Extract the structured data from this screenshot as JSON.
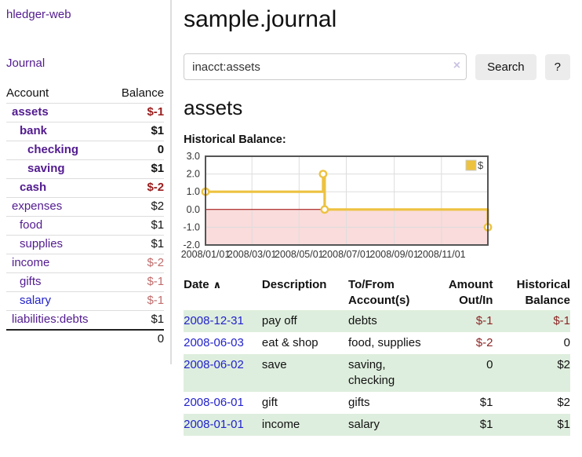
{
  "colors": {
    "accent_purple": "#521b8f",
    "link_blue": "#2222cc",
    "negative_strong": "#9b1c1c",
    "negative_table": "#8b2525",
    "negative_light": "#c06c6c",
    "row_green": "#deeede",
    "chart_line": "#EDC240",
    "chart_negative_fill": "#fadcdc",
    "chart_zero_line": "#a40000",
    "chart_grid": "#dddddd",
    "chart_border": "#555555"
  },
  "sidebar": {
    "app_title": "hledger-web",
    "nav": {
      "journal_label": "Journal"
    },
    "accounts_table": {
      "headers": {
        "account": "Account",
        "balance": "Balance"
      },
      "rows": [
        {
          "name": "assets",
          "depth": 1,
          "bold": true,
          "color": "purple",
          "balance": "$-1",
          "balance_style": "negbold"
        },
        {
          "name": "bank",
          "depth": 2,
          "bold": true,
          "color": "purple",
          "balance": "$1",
          "balance_style": "bold"
        },
        {
          "name": "checking",
          "depth": 3,
          "bold": true,
          "color": "purple",
          "balance": "0",
          "balance_style": "bold"
        },
        {
          "name": "saving",
          "depth": 3,
          "bold": true,
          "color": "purple",
          "balance": "$1",
          "balance_style": "bold"
        },
        {
          "name": "cash",
          "depth": 2,
          "bold": true,
          "color": "purple",
          "balance": "$-2",
          "balance_style": "negbold"
        },
        {
          "name": "expenses",
          "depth": 1,
          "bold": false,
          "color": "purple",
          "balance": "$2",
          "balance_style": "normal"
        },
        {
          "name": "food",
          "depth": 2,
          "bold": false,
          "color": "purple",
          "balance": "$1",
          "balance_style": "normal"
        },
        {
          "name": "supplies",
          "depth": 2,
          "bold": false,
          "color": "purple",
          "balance": "$1",
          "balance_style": "normal"
        },
        {
          "name": "income",
          "depth": 1,
          "bold": false,
          "color": "purple",
          "balance": "$-2",
          "balance_style": "neglight"
        },
        {
          "name": "gifts",
          "depth": 2,
          "bold": false,
          "color": "purple",
          "balance": "$-1",
          "balance_style": "neglight"
        },
        {
          "name": "salary",
          "depth": 2,
          "bold": false,
          "color": "blue",
          "balance": "$-1",
          "balance_style": "neglight"
        },
        {
          "name": "liabilities:debts",
          "depth": 1,
          "bold": false,
          "color": "purple",
          "balance": "$1",
          "balance_style": "normal"
        }
      ],
      "total": "0"
    }
  },
  "main": {
    "page_title": "sample.journal",
    "search": {
      "value": "inacct:assets",
      "clear_icon": "×",
      "search_label": "Search",
      "help_label": "?"
    },
    "account_title": "assets",
    "chart_title": "Historical Balance:",
    "register_table": {
      "headers": {
        "date": "Date",
        "sort_icon": "∧",
        "description": "Description",
        "account": "To/From Account(s)",
        "amount": "Amount Out/In",
        "balance": "Historical Balance"
      },
      "rows": [
        {
          "date": "2008-12-31",
          "description": "pay off",
          "accounts": "debts",
          "amount": "$-1",
          "amount_neg": true,
          "balance": "$-1",
          "balance_neg": true,
          "shaded": true
        },
        {
          "date": "2008-06-03",
          "description": "eat & shop",
          "accounts": "food, supplies",
          "amount": "$-2",
          "amount_neg": true,
          "balance": "0",
          "balance_neg": false,
          "shaded": false
        },
        {
          "date": "2008-06-02",
          "description": "save",
          "accounts": "saving, checking",
          "amount": "0",
          "amount_neg": false,
          "balance": "$2",
          "balance_neg": false,
          "shaded": true
        },
        {
          "date": "2008-06-01",
          "description": "gift",
          "accounts": "gifts",
          "amount": "$1",
          "amount_neg": false,
          "balance": "$2",
          "balance_neg": false,
          "shaded": false
        },
        {
          "date": "2008-01-01",
          "description": "income",
          "accounts": "salary",
          "amount": "$1",
          "amount_neg": false,
          "balance": "$1",
          "balance_neg": false,
          "shaded": true
        }
      ]
    }
  },
  "chart_data": {
    "type": "line",
    "step": true,
    "title": "Historical Balance:",
    "series": [
      {
        "name": "$",
        "points": [
          [
            "2008-01-01",
            1
          ],
          [
            "2008-06-01",
            2
          ],
          [
            "2008-06-03",
            0
          ],
          [
            "2008-12-31",
            -1
          ]
        ]
      }
    ],
    "ylim": [
      -2,
      3
    ],
    "yticks": [
      3.0,
      2.0,
      1.0,
      0.0,
      -1.0,
      -2.0
    ],
    "xticks": [
      "2008/01/01",
      "2008/03/01",
      "2008/05/01",
      "2008/07/01",
      "2008/09/01",
      "2008/11/01"
    ],
    "xrange": [
      "2008-01-01",
      "2008-12-31"
    ],
    "grid": true,
    "negative_region_shaded": true,
    "legend": {
      "label": "$",
      "position": "top-right"
    }
  }
}
